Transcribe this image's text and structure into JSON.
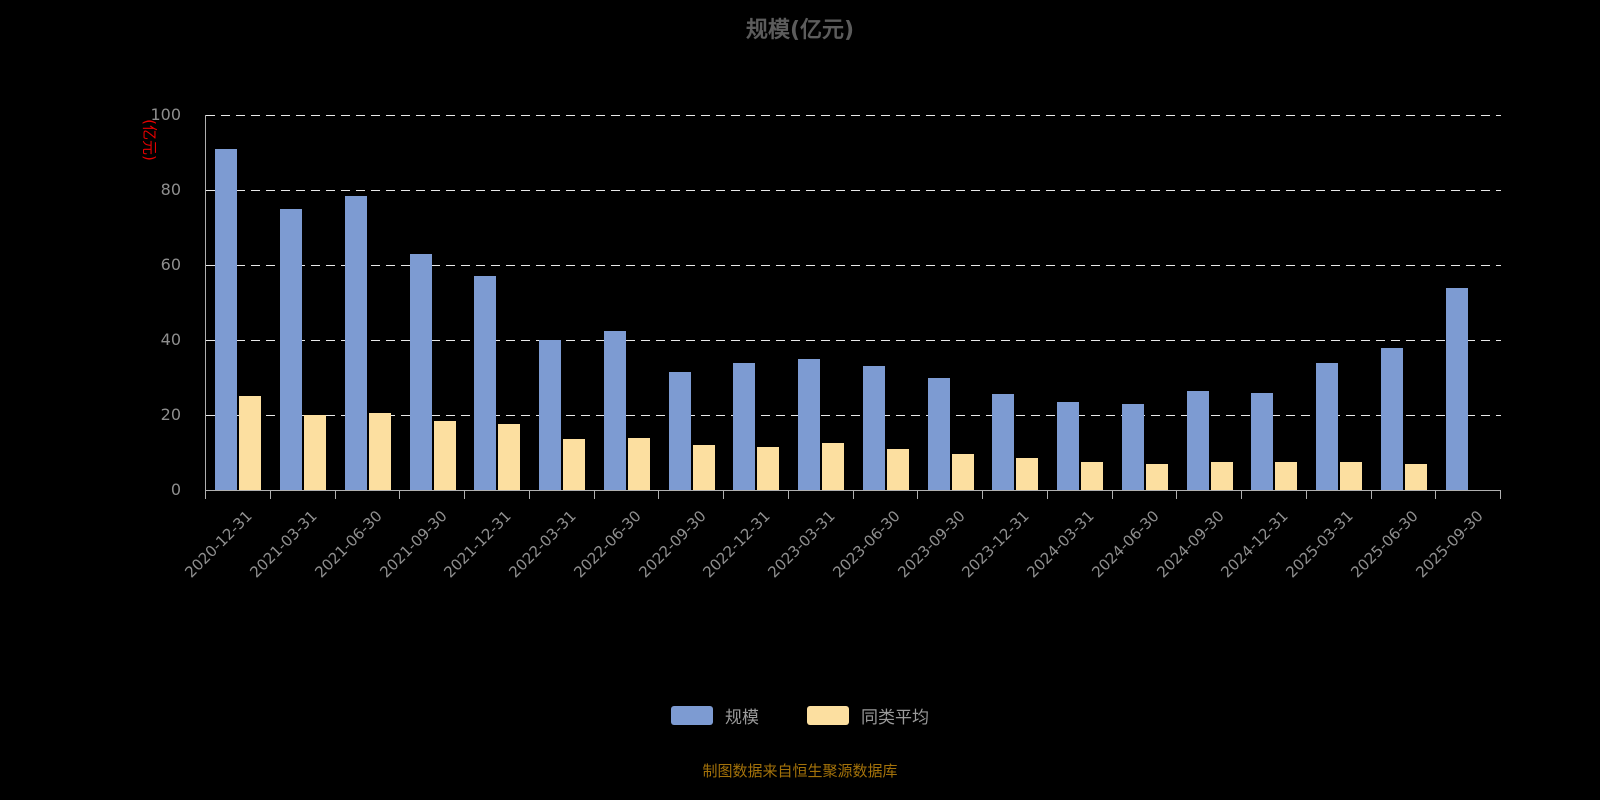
{
  "title": "规模(亿元)",
  "y_axis_unit": "(亿元)",
  "footer": "制图数据来自恒生聚源数据库",
  "legend": [
    {
      "key": "scale",
      "label": "规模",
      "color": "#7d9bd2"
    },
    {
      "key": "peer-average",
      "label": "同类平均",
      "color": "#fcdfa0"
    }
  ],
  "chart_data": {
    "type": "bar",
    "title": "规模(亿元)",
    "ylabel": "(亿元)",
    "ylim": [
      0,
      100
    ],
    "yticks": [
      0,
      20,
      40,
      60,
      80,
      100
    ],
    "grid": true,
    "legend_position": "bottom",
    "categories": [
      "2020-12-31",
      "2021-03-31",
      "2021-06-30",
      "2021-09-30",
      "2021-12-31",
      "2022-03-31",
      "2022-06-30",
      "2022-09-30",
      "2022-12-31",
      "2023-03-31",
      "2023-06-30",
      "2023-09-30",
      "2023-12-31",
      "2024-03-31",
      "2024-06-30",
      "2024-09-30",
      "2024-12-31",
      "2025-03-31",
      "2025-06-30",
      "2025-09-30"
    ],
    "series": [
      {
        "name": "规模",
        "key": "scale",
        "color": "#7d9bd2",
        "values": [
          91,
          75,
          78.5,
          63,
          57,
          40,
          42.5,
          31.5,
          34,
          35,
          33,
          30,
          25.5,
          23.5,
          23,
          26.5,
          26,
          34,
          38,
          54
        ]
      },
      {
        "name": "同类平均",
        "key": "peer-average",
        "color": "#fcdfa0",
        "values": [
          25,
          20,
          20.5,
          18.5,
          17.5,
          13.5,
          14,
          12,
          11.5,
          12.5,
          11,
          9.5,
          8.5,
          7.5,
          7,
          7.5,
          7.5,
          7.5,
          7,
          null
        ]
      }
    ]
  }
}
